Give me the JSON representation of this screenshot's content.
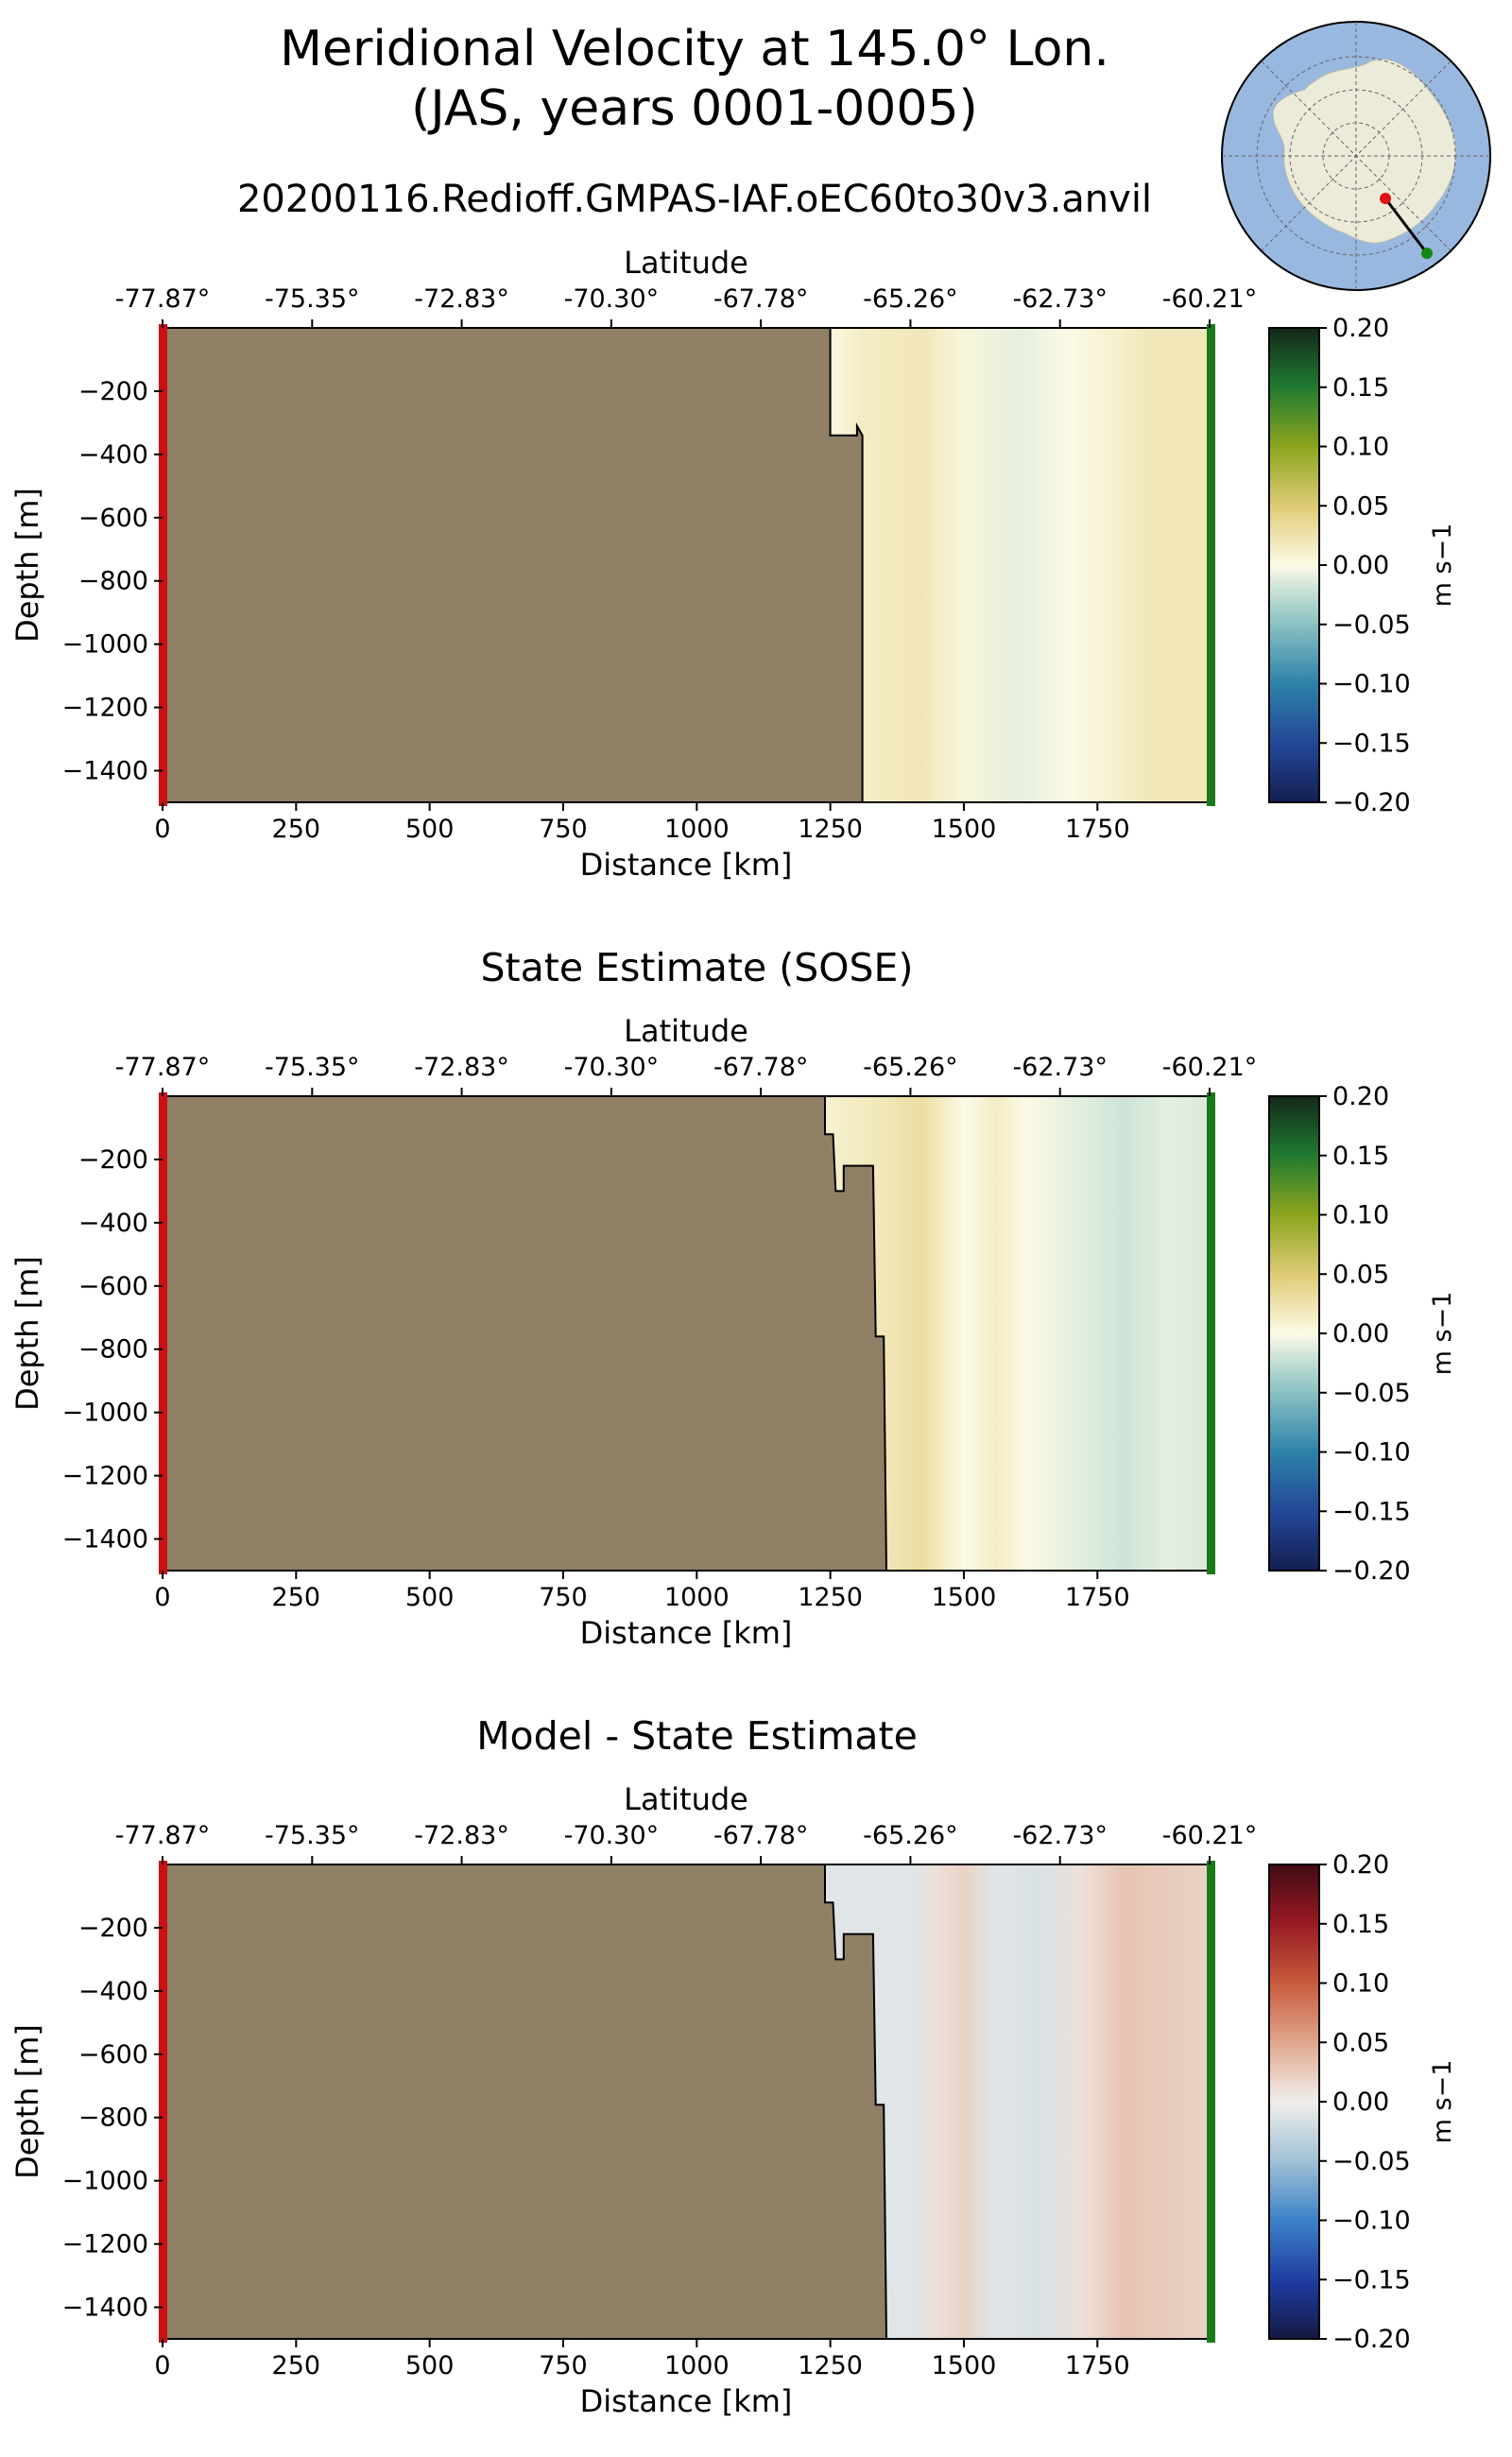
{
  "header": {
    "title_line1": "Meridional Velocity at 145.0° Lon.",
    "title_line2": "(JAS, years 0001-0005)",
    "run_name": "20200116.Redioff.GMPAS-IAF.oEC60to30v3.anvil"
  },
  "colors": {
    "land": "#8f8066",
    "start_marker": "#cc1111",
    "end_marker": "#1a7a1a",
    "ocean": "#99b8e0",
    "antarctica": "#ecebd9"
  },
  "chart_data": [
    {
      "type": "heatmap",
      "panel_id": "model",
      "title": "",
      "xlabel": "Distance [km]",
      "ylabel": "Depth [m]",
      "top_axis_label": "Latitude",
      "xlim": [
        0,
        1960
      ],
      "ylim": [
        -1500,
        0
      ],
      "xticks": [
        0,
        250,
        500,
        750,
        1000,
        1250,
        1500,
        1750
      ],
      "yticks": [
        -200,
        -400,
        -600,
        -800,
        -1000,
        -1200,
        -1400
      ],
      "latitude_ticks": [
        "-77.87°",
        "-75.35°",
        "-72.83°",
        "-70.30°",
        "-67.78°",
        "-65.26°",
        "-62.73°",
        "-60.21°"
      ],
      "colorbar": {
        "label": "m s−1",
        "colormap": "delta",
        "vmin": -0.2,
        "vmax": 0.2,
        "ticks": [
          "0.20",
          "0.15",
          "0.10",
          "0.05",
          "0.00",
          "−0.05",
          "−0.10",
          "−0.15",
          "−0.20"
        ]
      },
      "bathymetry_km_depth": [
        [
          1250,
          0
        ],
        [
          1250,
          -340
        ],
        [
          1300,
          -340
        ],
        [
          1300,
          -310
        ],
        [
          1310,
          -340
        ],
        [
          1310,
          -1500
        ]
      ],
      "velocity_by_distance": [
        [
          1250,
          0.002
        ],
        [
          1310,
          0.015
        ],
        [
          1420,
          0.02
        ],
        [
          1500,
          0.005
        ],
        [
          1600,
          -0.01
        ],
        [
          1700,
          0.0
        ],
        [
          1780,
          0.01
        ],
        [
          1850,
          0.02
        ],
        [
          1960,
          0.02
        ]
      ]
    },
    {
      "type": "heatmap",
      "panel_id": "sose",
      "title": "State Estimate (SOSE)",
      "xlabel": "Distance [km]",
      "ylabel": "Depth [m]",
      "top_axis_label": "Latitude",
      "xlim": [
        0,
        1960
      ],
      "ylim": [
        -1500,
        0
      ],
      "xticks": [
        0,
        250,
        500,
        750,
        1000,
        1250,
        1500,
        1750
      ],
      "yticks": [
        -200,
        -400,
        -600,
        -800,
        -1000,
        -1200,
        -1400
      ],
      "latitude_ticks": [
        "-77.87°",
        "-75.35°",
        "-72.83°",
        "-70.30°",
        "-67.78°",
        "-65.26°",
        "-62.73°",
        "-60.21°"
      ],
      "colorbar": {
        "label": "m s−1",
        "colormap": "delta",
        "vmin": -0.2,
        "vmax": 0.2,
        "ticks": [
          "0.20",
          "0.15",
          "0.10",
          "0.05",
          "0.00",
          "−0.05",
          "−0.10",
          "−0.15",
          "−0.20"
        ]
      },
      "bathymetry_km_depth": [
        [
          1240,
          0
        ],
        [
          1240,
          -120
        ],
        [
          1255,
          -120
        ],
        [
          1260,
          -300
        ],
        [
          1275,
          -300
        ],
        [
          1275,
          -220
        ],
        [
          1330,
          -220
        ],
        [
          1335,
          -760
        ],
        [
          1350,
          -760
        ],
        [
          1355,
          -1500
        ]
      ],
      "velocity_by_distance": [
        [
          1240,
          0.01
        ],
        [
          1350,
          0.02
        ],
        [
          1420,
          0.03
        ],
        [
          1500,
          0.0
        ],
        [
          1560,
          0.015
        ],
        [
          1620,
          0.0
        ],
        [
          1700,
          -0.01
        ],
        [
          1800,
          -0.02
        ],
        [
          1880,
          -0.01
        ],
        [
          1960,
          -0.015
        ]
      ]
    },
    {
      "type": "heatmap",
      "panel_id": "diff",
      "title": "Model - State Estimate",
      "xlabel": "Distance [km]",
      "ylabel": "Depth [m]",
      "top_axis_label": "Latitude",
      "xlim": [
        0,
        1960
      ],
      "ylim": [
        -1500,
        0
      ],
      "xticks": [
        0,
        250,
        500,
        750,
        1000,
        1250,
        1500,
        1750
      ],
      "yticks": [
        -200,
        -400,
        -600,
        -800,
        -1000,
        -1200,
        -1400
      ],
      "latitude_ticks": [
        "-77.87°",
        "-75.35°",
        "-72.83°",
        "-70.30°",
        "-67.78°",
        "-65.26°",
        "-62.73°",
        "-60.21°"
      ],
      "colorbar": {
        "label": "m s−1",
        "colormap": "balance",
        "vmin": -0.2,
        "vmax": 0.2,
        "ticks": [
          "0.20",
          "0.15",
          "0.10",
          "0.05",
          "0.00",
          "−0.05",
          "−0.10",
          "−0.15",
          "−0.20"
        ]
      },
      "bathymetry_km_depth": [
        [
          1240,
          0
        ],
        [
          1240,
          -120
        ],
        [
          1255,
          -120
        ],
        [
          1260,
          -300
        ],
        [
          1275,
          -300
        ],
        [
          1275,
          -220
        ],
        [
          1330,
          -220
        ],
        [
          1335,
          -760
        ],
        [
          1350,
          -760
        ],
        [
          1355,
          -1500
        ]
      ],
      "velocity_by_distance": [
        [
          1240,
          -0.01
        ],
        [
          1400,
          -0.01
        ],
        [
          1450,
          0.01
        ],
        [
          1500,
          0.02
        ],
        [
          1560,
          -0.01
        ],
        [
          1640,
          -0.015
        ],
        [
          1720,
          0.01
        ],
        [
          1800,
          0.03
        ],
        [
          1880,
          0.025
        ],
        [
          1960,
          0.02
        ]
      ]
    }
  ]
}
